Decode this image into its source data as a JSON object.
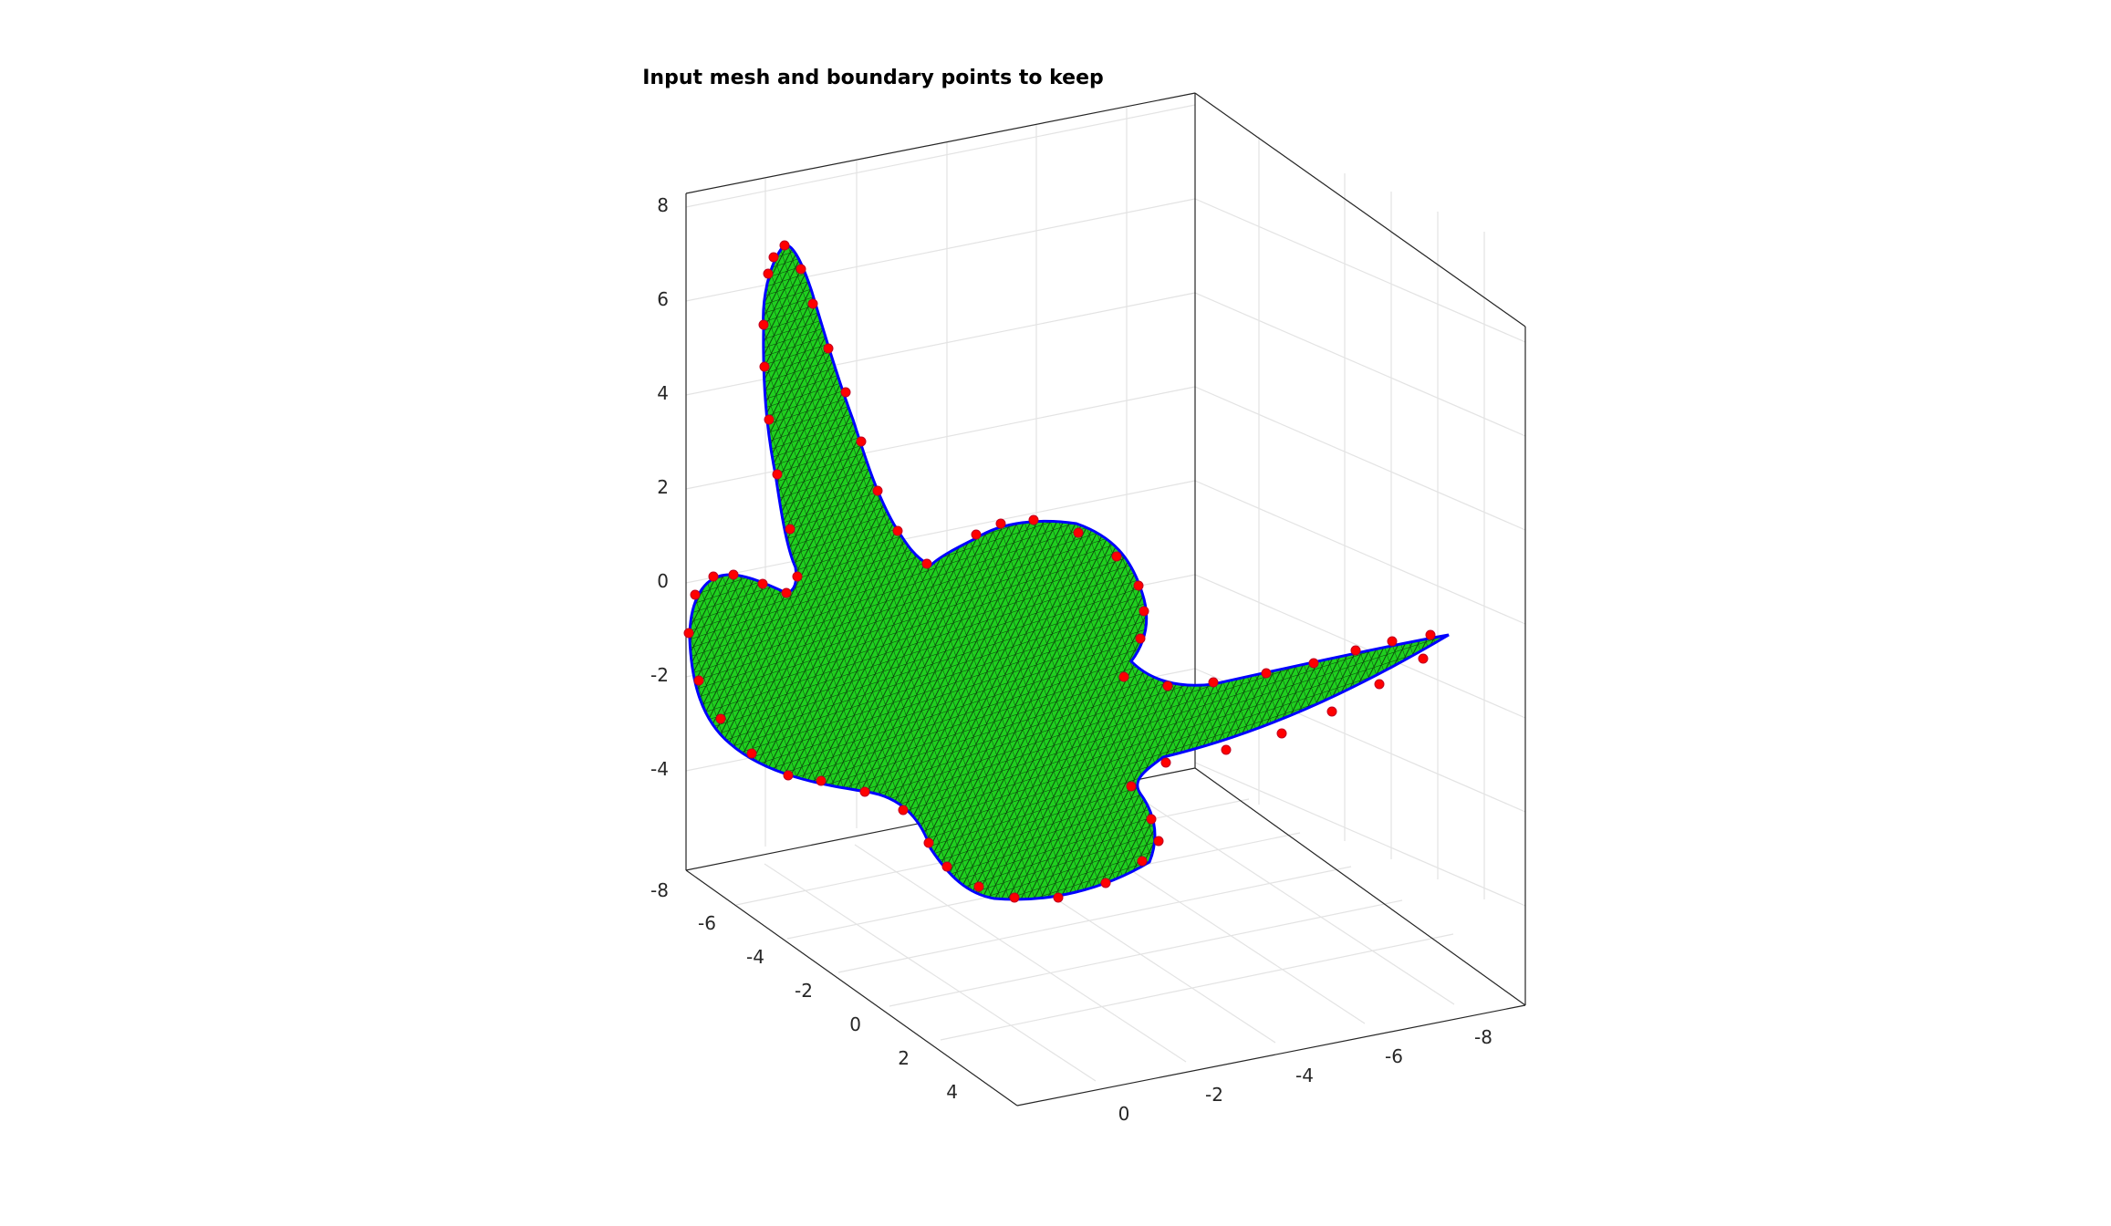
{
  "chart_data": {
    "type": "surface-mesh-3d",
    "title": "Input mesh and boundary points to keep",
    "grid": true,
    "axes": {
      "x": {
        "ticks": [
          "-6",
          "-4",
          "-2",
          "0",
          "2",
          "4"
        ]
      },
      "y": {
        "ticks": [
          "0",
          "-2",
          "-4",
          "-6",
          "-8"
        ]
      },
      "z": {
        "ticks": [
          "8",
          "6",
          "4",
          "2",
          "0",
          "-2",
          "-4",
          "-8"
        ]
      }
    },
    "series": [
      {
        "kind": "mesh-surface",
        "color": "#1fcf1f",
        "edge_color": "#000000"
      },
      {
        "kind": "boundary-curve",
        "color": "#0000ff"
      },
      {
        "kind": "boundary-points-to-keep",
        "color": "#ff0000"
      }
    ]
  }
}
